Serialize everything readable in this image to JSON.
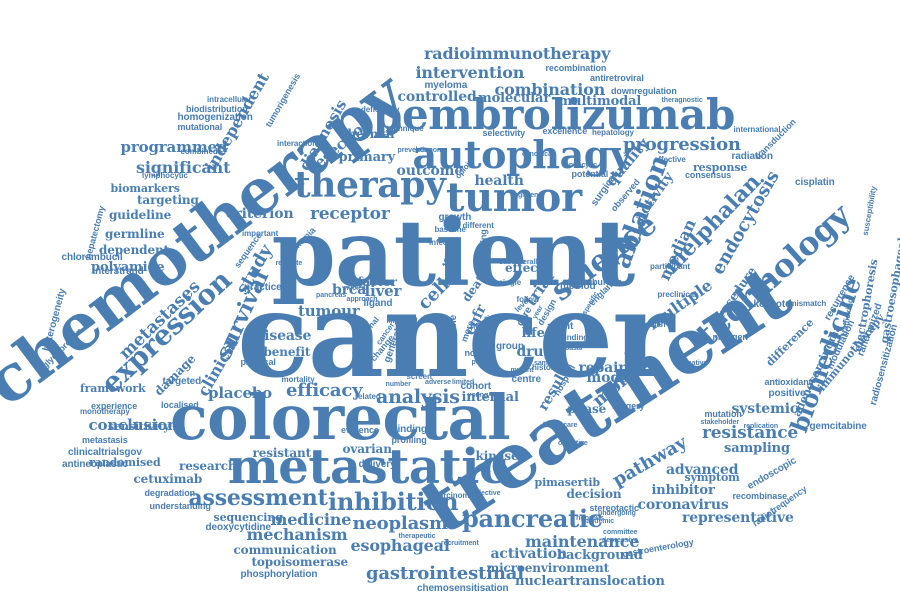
{
  "color": "#4a7eb3",
  "words": [
    {
      "text": "cancer"
    },
    {
      "text": "patient"
    },
    {
      "text": "treatment"
    },
    {
      "text": "chemotherapy"
    },
    {
      "text": "colorectal"
    },
    {
      "text": "metastatic"
    },
    {
      "text": "pembrolizumab"
    },
    {
      "text": "autophagy"
    },
    {
      "text": "tumor"
    },
    {
      "text": "therapy"
    },
    {
      "text": "technology"
    },
    {
      "text": "science"
    },
    {
      "text": "biomedicine"
    },
    {
      "text": "expression"
    },
    {
      "text": "survival"
    },
    {
      "text": "assessment"
    },
    {
      "text": "inhibition"
    },
    {
      "text": "pancreatic"
    },
    {
      "text": "ablation"
    },
    {
      "text": "melphalan"
    },
    {
      "text": "endocytosis"
    },
    {
      "text": "progression"
    },
    {
      "text": "radioimmunotherapy"
    },
    {
      "text": "intervention"
    },
    {
      "text": "combination"
    },
    {
      "text": "controlled"
    },
    {
      "text": "molecular"
    },
    {
      "text": "multimodal"
    },
    {
      "text": "resection"
    },
    {
      "text": "diagnosis"
    },
    {
      "text": "independent"
    },
    {
      "text": "tumorigenesis"
    },
    {
      "text": "health"
    },
    {
      "text": "quality"
    },
    {
      "text": "activity"
    },
    {
      "text": "median"
    },
    {
      "text": "receptor"
    },
    {
      "text": "criterion"
    },
    {
      "text": "primary"
    },
    {
      "text": "outcome"
    },
    {
      "text": "thermal"
    },
    {
      "text": "significant"
    },
    {
      "text": "programmed"
    },
    {
      "text": "biomarkers"
    },
    {
      "text": "targeting"
    },
    {
      "text": "guideline"
    },
    {
      "text": "germline"
    },
    {
      "text": "dependent"
    },
    {
      "text": "polyamide"
    },
    {
      "text": "metastases"
    },
    {
      "text": "clinical"
    },
    {
      "text": "study"
    },
    {
      "text": "damage"
    },
    {
      "text": "placebo"
    },
    {
      "text": "conclusion"
    },
    {
      "text": "efficacy"
    },
    {
      "text": "analysis"
    },
    {
      "text": "research"
    },
    {
      "text": "cetuximab"
    },
    {
      "text": "disease"
    },
    {
      "text": "benefit"
    },
    {
      "text": "tumour"
    },
    {
      "text": "brca"
    },
    {
      "text": "liver"
    },
    {
      "text": "cells"
    },
    {
      "text": "death"
    },
    {
      "text": "trial"
    },
    {
      "text": "multiple"
    },
    {
      "text": "procedure"
    },
    {
      "text": "month"
    },
    {
      "text": "repair"
    },
    {
      "text": "resistance"
    },
    {
      "text": "sampling"
    },
    {
      "text": "systemic"
    },
    {
      "text": "pathway"
    },
    {
      "text": "advanced"
    },
    {
      "text": "inhibitor"
    },
    {
      "text": "coronavirus"
    },
    {
      "text": "representative"
    },
    {
      "text": "maintenance"
    },
    {
      "text": "background"
    },
    {
      "text": "activation"
    },
    {
      "text": "gastrointestinal"
    },
    {
      "text": "esophageal"
    },
    {
      "text": "neoplasm"
    },
    {
      "text": "medicine"
    },
    {
      "text": "mechanism"
    },
    {
      "text": "communication"
    },
    {
      "text": "topoisomerase"
    },
    {
      "text": "phosphorylation"
    },
    {
      "text": "chemosensitisation"
    },
    {
      "text": "microenvironment"
    },
    {
      "text": "nucleartranslocation"
    },
    {
      "text": "gastroenterology"
    },
    {
      "text": "pimasertib"
    },
    {
      "text": "kinase"
    },
    {
      "text": "ovarian"
    },
    {
      "text": "resistant"
    },
    {
      "text": "internal"
    },
    {
      "text": "drug"
    },
    {
      "text": "life"
    },
    {
      "text": "egfr"
    },
    {
      "text": "effect"
    },
    {
      "text": "radiation"
    },
    {
      "text": "cisplatin"
    },
    {
      "text": "response"
    },
    {
      "text": "gemcitabine"
    },
    {
      "text": "adenocarcinoma"
    },
    {
      "text": "modulation"
    },
    {
      "text": "randomized"
    },
    {
      "text": "electrophoresis"
    },
    {
      "text": "gastroesophageal"
    },
    {
      "text": "keynote"
    },
    {
      "text": "difference"
    },
    {
      "text": "recurrence"
    },
    {
      "text": "immunotherapy"
    },
    {
      "text": "radiosensitization"
    },
    {
      "text": "endoscopic"
    },
    {
      "text": "symptom"
    },
    {
      "text": "recombinase"
    },
    {
      "text": "radiofrequency"
    },
    {
      "text": "decision"
    },
    {
      "text": "phase"
    },
    {
      "text": "model"
    },
    {
      "text": "tyrosine"
    },
    {
      "text": "result"
    },
    {
      "text": "surgery"
    },
    {
      "text": "positive"
    },
    {
      "text": "antioxidant"
    },
    {
      "text": "nitrogen"
    },
    {
      "text": "mutation"
    },
    {
      "text": "stereotactic"
    },
    {
      "text": "myeloma"
    },
    {
      "text": "recombination"
    },
    {
      "text": "antiretroviral"
    },
    {
      "text": "downregulation"
    },
    {
      "text": "theragnostic"
    },
    {
      "text": "homogenization"
    },
    {
      "text": "biodistribution"
    },
    {
      "text": "intracellular"
    },
    {
      "text": "mutational"
    },
    {
      "text": "combined"
    },
    {
      "text": "lymphocytic"
    },
    {
      "text": "hepatectomy"
    },
    {
      "text": "chlorambucil"
    },
    {
      "text": "interstrand"
    },
    {
      "text": "heterogeneity"
    },
    {
      "text": "glycoprotein"
    },
    {
      "text": "framework"
    },
    {
      "text": "experience"
    },
    {
      "text": "monotherapy"
    },
    {
      "text": "localised"
    },
    {
      "text": "metastasis"
    },
    {
      "text": "sensitivity"
    },
    {
      "text": "clinicaltrialsgov"
    },
    {
      "text": "randomised"
    },
    {
      "text": "antineoplastic"
    },
    {
      "text": "degradation"
    },
    {
      "text": "understanding"
    },
    {
      "text": "sequencing"
    },
    {
      "text": "deoxycytidine"
    },
    {
      "text": "targeted"
    },
    {
      "text": "physical"
    },
    {
      "text": "practice"
    },
    {
      "text": "delivery"
    },
    {
      "text": "evidence"
    },
    {
      "text": "binding"
    },
    {
      "text": "profiling"
    },
    {
      "text": "carcinoma"
    },
    {
      "text": "selectivity"
    },
    {
      "text": "excellence"
    },
    {
      "text": "hepatology"
    },
    {
      "text": "international"
    },
    {
      "text": "transduction"
    },
    {
      "text": "effective"
    },
    {
      "text": "consensus"
    },
    {
      "text": "potential"
    },
    {
      "text": "surgical"
    },
    {
      "text": "observed"
    },
    {
      "text": "growth"
    },
    {
      "text": "factor"
    },
    {
      "text": "ligand"
    },
    {
      "text": "pancreas"
    },
    {
      "text": "burden"
    },
    {
      "text": "method"
    },
    {
      "text": "design"
    },
    {
      "text": "agent"
    },
    {
      "text": "profile"
    },
    {
      "text": "care"
    },
    {
      "text": "group"
    },
    {
      "text": "cohort"
    },
    {
      "text": "centre"
    },
    {
      "text": "hospital"
    },
    {
      "text": "england"
    },
    {
      "text": "preclinical"
    },
    {
      "text": "participant"
    },
    {
      "text": "susceptibility"
    },
    {
      "text": "trafficking"
    },
    {
      "text": "mismatch"
    },
    {
      "text": "rigorous"
    },
    {
      "text": "committee"
    },
    {
      "text": "depressive"
    },
    {
      "text": "undergoing"
    },
    {
      "text": "pandemic"
    },
    {
      "text": "therapeutic"
    },
    {
      "text": "recruitment"
    },
    {
      "text": "selective"
    },
    {
      "text": "objective"
    },
    {
      "text": "replication"
    },
    {
      "text": "stakeholder"
    },
    {
      "text": "alternative"
    },
    {
      "text": "healthcare"
    },
    {
      "text": "mortality"
    },
    {
      "text": "important"
    },
    {
      "text": "leukemia"
    },
    {
      "text": "sequence"
    },
    {
      "text": "regulate"
    },
    {
      "text": "infected"
    },
    {
      "text": "baseline"
    },
    {
      "text": "technique"
    },
    {
      "text": "prevention"
    },
    {
      "text": "hormone"
    },
    {
      "text": "deficiency"
    },
    {
      "text": "interaction"
    },
    {
      "text": "endocytic"
    },
    {
      "text": "canonical"
    },
    {
      "text": "opioid"
    },
    {
      "text": "nuclear"
    },
    {
      "text": "number"
    },
    {
      "text": "adverse"
    },
    {
      "text": "limited"
    },
    {
      "text": "young"
    },
    {
      "text": "related"
    },
    {
      "text": "single"
    },
    {
      "text": "follow"
    },
    {
      "text": "level"
    },
    {
      "text": "year"
    },
    {
      "text": "risk"
    },
    {
      "text": "novel"
    },
    {
      "text": "point"
    },
    {
      "text": "general"
    },
    {
      "text": "change"
    },
    {
      "text": "national"
    },
    {
      "text": "line"
    },
    {
      "text": "time"
    },
    {
      "text": "more"
    },
    {
      "text": "median"
    },
    {
      "text": "mutant"
    },
    {
      "text": "sample"
    },
    {
      "text": "specific"
    },
    {
      "text": "finding"
    },
    {
      "text": "basal"
    },
    {
      "text": "history"
    },
    {
      "text": "target"
    },
    {
      "text": "funding"
    },
    {
      "text": "different"
    },
    {
      "text": "subtype"
    },
    {
      "text": "overall"
    },
    {
      "text": "screen"
    },
    {
      "text": "cancer"
    },
    {
      "text": "approach"
    },
    {
      "text": "improved"
    },
    {
      "text": "regimen"
    },
    {
      "text": "early"
    }
  ]
}
